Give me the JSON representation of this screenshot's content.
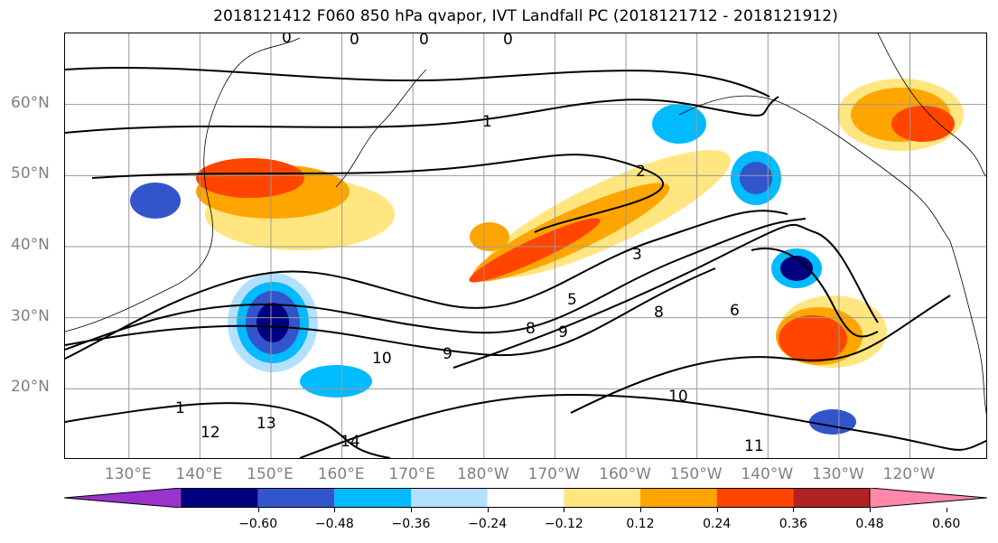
{
  "title": "2018121412 F060 850 hPa qvapor, IVT Landfall PC (2018121712 - 2018121912)",
  "map": {
    "lat_labels": [
      {
        "text": "60°N",
        "lat": 60
      },
      {
        "text": "50°N",
        "lat": 50
      },
      {
        "text": "40°N",
        "lat": 40
      },
      {
        "text": "30°N",
        "lat": 30
      },
      {
        "text": "20°N",
        "lat": 20
      }
    ],
    "lon_labels": [
      {
        "text": "130°E",
        "lon": 130
      },
      {
        "text": "140°E",
        "lon": 140
      },
      {
        "text": "150°E",
        "lon": 150
      },
      {
        "text": "160°E",
        "lon": 160
      },
      {
        "text": "170°E",
        "lon": 170
      },
      {
        "text": "180°W",
        "lon": 180
      },
      {
        "text": "170°W",
        "lon": 190
      },
      {
        "text": "160°W",
        "lon": 200
      },
      {
        "text": "150°W",
        "lon": 210
      },
      {
        "text": "140°W",
        "lon": 220
      },
      {
        "text": "130°W",
        "lon": 230
      },
      {
        "text": "120°W",
        "lon": 240
      }
    ],
    "lon_range": [
      121,
      251
    ],
    "lat_range": [
      10,
      70
    ],
    "gridlines": true,
    "contour_labels": [
      "0",
      "0",
      "0",
      "0",
      "1",
      "2",
      "3",
      "5",
      "6",
      "8",
      "9",
      "9",
      "10",
      "10",
      "11",
      "12",
      "13",
      "14",
      "1",
      "8"
    ]
  },
  "colorbar": {
    "colors": [
      "#9933cc",
      "#000080",
      "#3355cc",
      "#00bbff",
      "#b3e0ff",
      "#ffffff",
      "#ffe680",
      "#ffa500",
      "#ff4500",
      "#b22222",
      "#ff88aa"
    ],
    "ticks": [
      "−0.60",
      "−0.48",
      "−0.36",
      "−0.24",
      "−0.12",
      "0.12",
      "0.24",
      "0.36",
      "0.48",
      "0.60"
    ]
  }
}
